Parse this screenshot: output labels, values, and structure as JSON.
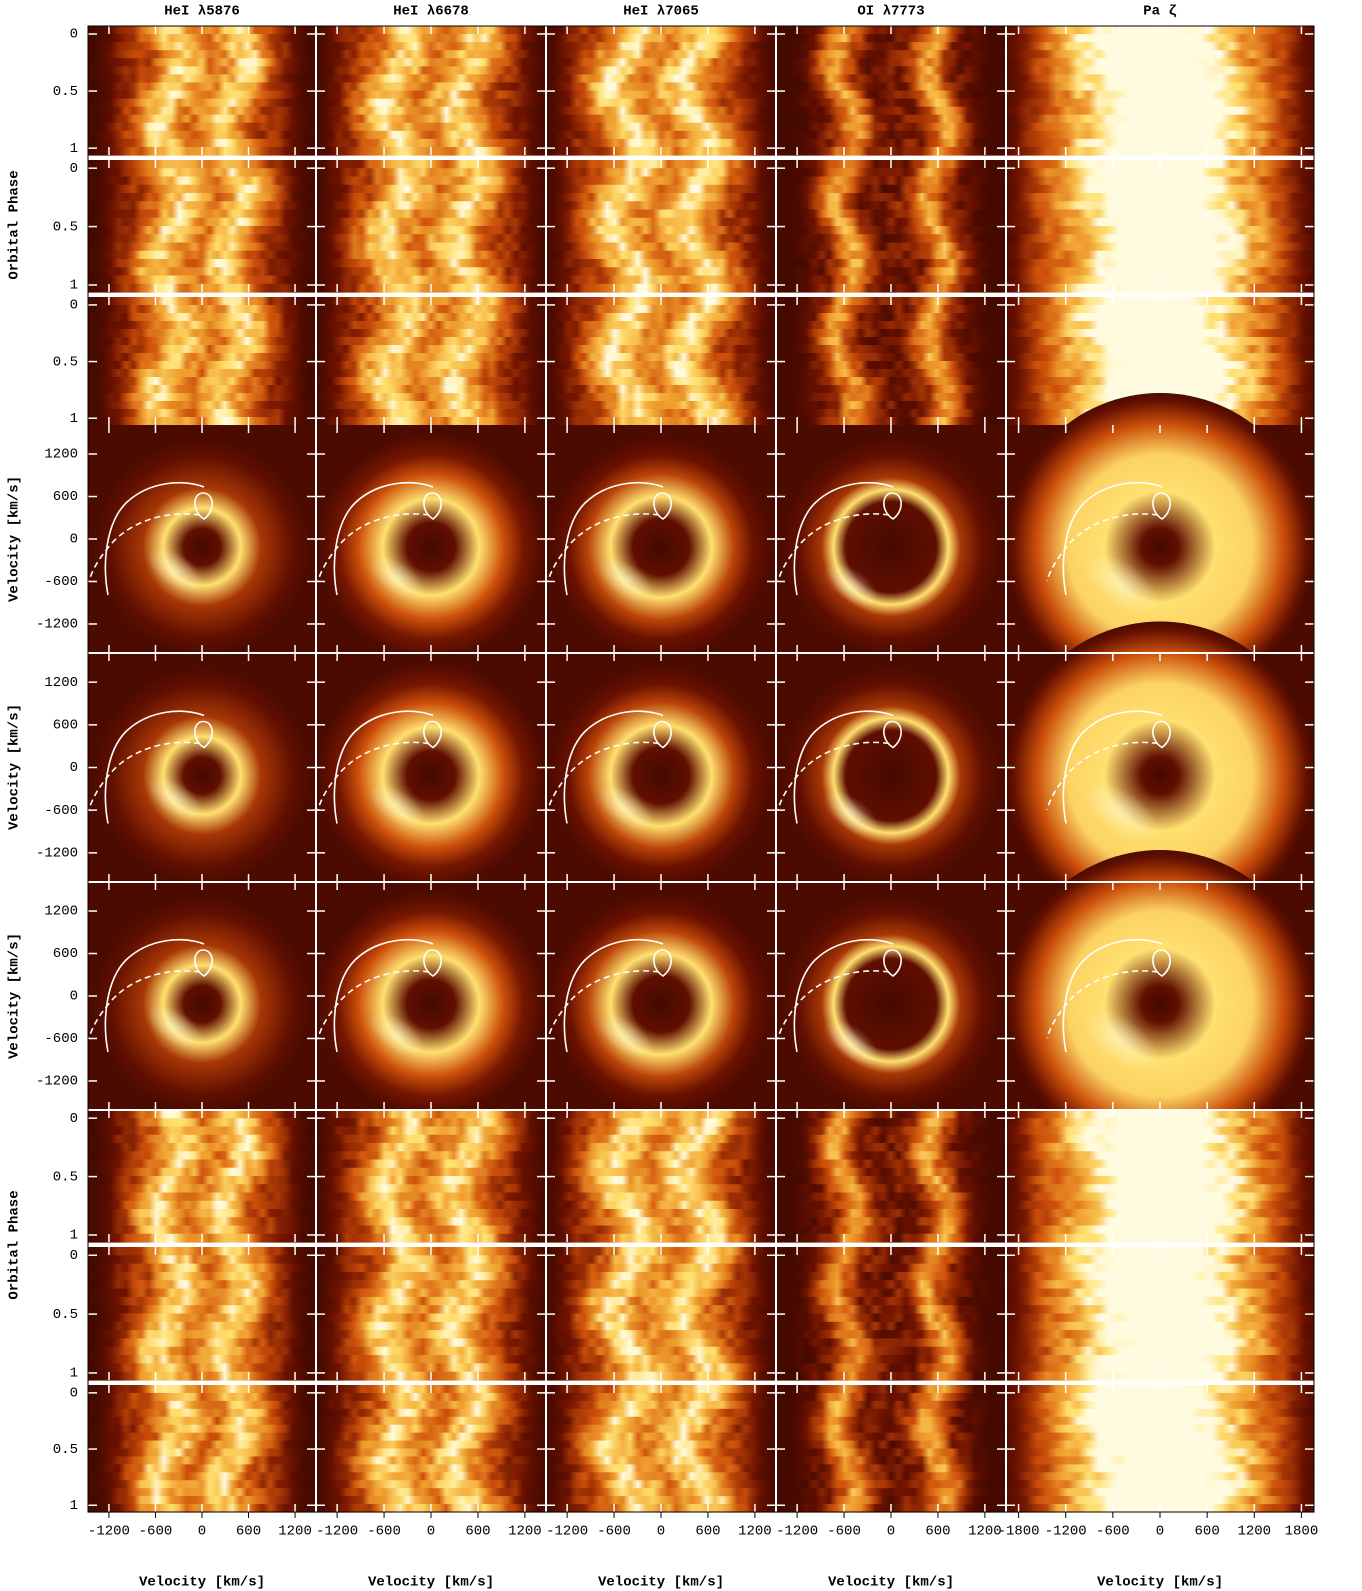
{
  "chart_data": {
    "type": "doppler-grid",
    "columns": [
      {
        "title": "HeI λ5876",
        "xlim": [
          -1470,
          1470
        ],
        "xticks": [
          -1200,
          -600,
          0,
          600,
          1200
        ]
      },
      {
        "title": "HeI λ6678",
        "xlim": [
          -1470,
          1470
        ],
        "xticks": [
          -1200,
          -600,
          0,
          600,
          1200
        ]
      },
      {
        "title": "HeI λ7065",
        "xlim": [
          -1470,
          1470
        ],
        "xticks": [
          -1200,
          -600,
          0,
          600,
          1200
        ]
      },
      {
        "title": "OI λ7773",
        "xlim": [
          -1470,
          1470
        ],
        "xticks": [
          -1200,
          -600,
          0,
          600,
          1200
        ]
      },
      {
        "title": "Pa ζ",
        "xlim": [
          -1960,
          1960
        ],
        "xticks": [
          -1800,
          -1200,
          -600,
          0,
          600,
          1200,
          1800
        ]
      }
    ],
    "xlabel": "Velocity [km/s]",
    "phase_label": "Orbital Phase",
    "velocity_label": "Velocity [km/s]",
    "phase_ylim": [
      -0.07,
      1.06
    ],
    "phase_yticks": [
      0,
      0.5,
      1
    ],
    "velocity_ylim": [
      -1610,
      1610
    ],
    "velocity_yticks": [
      -1200,
      -600,
      0,
      600,
      1200
    ]
  }
}
